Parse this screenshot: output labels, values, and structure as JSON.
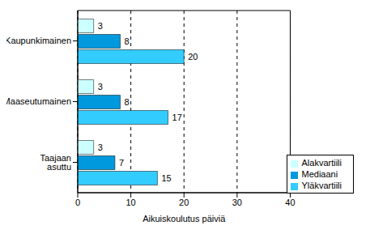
{
  "chart_data": {
    "type": "bar",
    "orientation": "horizontal",
    "categories": [
      "Kaupunkimainen",
      "Maaseutumainen",
      "Taajaan asuttu"
    ],
    "series": [
      {
        "name": "Alakvartiili",
        "color": "#ccffff",
        "values": [
          3,
          3,
          3
        ]
      },
      {
        "name": "Mediaani",
        "color": "#0099dd",
        "values": [
          8,
          8,
          7
        ]
      },
      {
        "name": "Yläkvartiili",
        "color": "#33ccff",
        "values": [
          20,
          17,
          15
        ]
      }
    ],
    "x_label": "Aikuiskoulutus päiviä",
    "xlim": [
      0,
      40
    ],
    "xticks": [
      0,
      10,
      20,
      30,
      40
    ],
    "grid": true,
    "legend": "lower right",
    "data_labels": true
  }
}
